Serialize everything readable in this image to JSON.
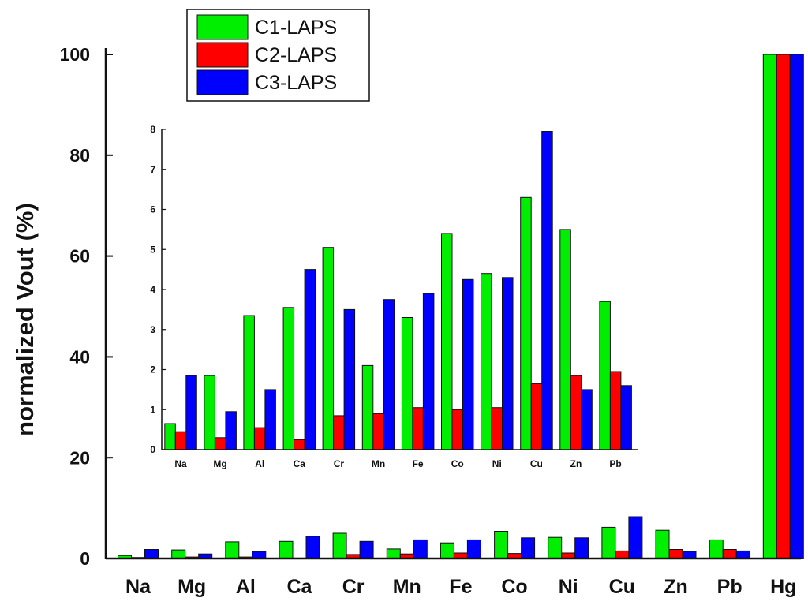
{
  "chart_data": [
    {
      "type": "bar",
      "xlabel": "",
      "ylabel": "normalized Vout (%)",
      "ylim": [
        0,
        100
      ],
      "yticks": [
        0,
        20,
        40,
        60,
        80,
        100
      ],
      "categories": [
        "Na",
        "Mg",
        "Al",
        "Ca",
        "Cr",
        "Mn",
        "Fe",
        "Co",
        "Ni",
        "Cu",
        "Zn",
        "Pb",
        "Hg"
      ],
      "series": [
        {
          "name": "C1-LAPS",
          "color": "#00ee00",
          "values": [
            0.6,
            1.7,
            3.3,
            3.4,
            5.0,
            1.9,
            3.1,
            5.4,
            4.2,
            6.2,
            5.6,
            3.7,
            100
          ]
        },
        {
          "name": "C2-LAPS",
          "color": "#ff0000",
          "values": [
            0.2,
            0.3,
            0.3,
            0.1,
            0.8,
            0.9,
            1.1,
            1.0,
            1.1,
            1.5,
            1.8,
            1.8,
            100
          ]
        },
        {
          "name": "C3-LAPS",
          "color": "#0000ff",
          "values": [
            1.8,
            0.9,
            1.4,
            4.4,
            3.4,
            3.7,
            3.7,
            4.1,
            4.1,
            8.3,
            1.4,
            1.5,
            100
          ]
        }
      ],
      "legend": {
        "position": "top-left"
      },
      "grid": false
    },
    {
      "type": "bar",
      "role": "inset",
      "ylim": [
        0,
        8
      ],
      "yticks": [
        0,
        1,
        2,
        3,
        4,
        5,
        6,
        7,
        8
      ],
      "categories": [
        "Na",
        "Mg",
        "Al",
        "Ca",
        "Cr",
        "Mn",
        "Fe",
        "Co",
        "Ni",
        "Cu",
        "Zn",
        "Pb"
      ],
      "series": [
        {
          "name": "C1-LAPS",
          "color": "#00ee00",
          "values": [
            0.65,
            1.85,
            3.35,
            3.55,
            5.05,
            2.1,
            3.3,
            5.4,
            4.4,
            6.3,
            5.5,
            3.7
          ]
        },
        {
          "name": "C2-LAPS",
          "color": "#ff0000",
          "values": [
            0.45,
            0.3,
            0.55,
            0.25,
            0.85,
            0.9,
            1.05,
            1.0,
            1.05,
            1.65,
            1.85,
            1.95
          ]
        },
        {
          "name": "C3-LAPS",
          "color": "#0000ff",
          "values": [
            1.85,
            0.95,
            1.5,
            4.5,
            3.5,
            3.75,
            3.9,
            4.25,
            4.3,
            7.95,
            1.5,
            1.6
          ]
        }
      ],
      "grid": false
    }
  ]
}
